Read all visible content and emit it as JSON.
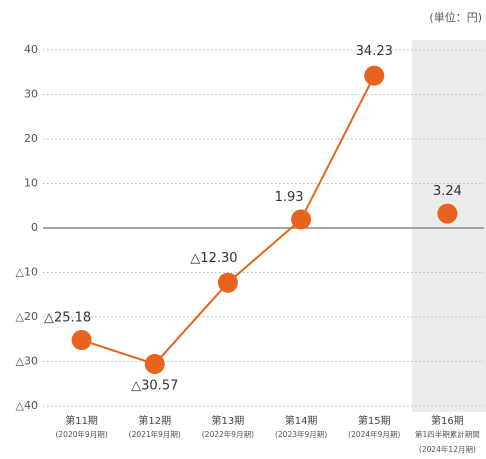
{
  "chart_data": {
    "type": "line",
    "unit_label": "(単位：円)",
    "categories": [
      [
        "第11期",
        "(2020年9月期)"
      ],
      [
        "第12期",
        "(2021年9月期)"
      ],
      [
        "第13期",
        "(2022年9月期)"
      ],
      [
        "第14期",
        "(2023年9月期)"
      ],
      [
        "第15期",
        "(2024年9月期)"
      ],
      [
        "第16期",
        "第1四半期累計期間",
        "(2024年12月期)"
      ]
    ],
    "series": [
      {
        "color": "#e8641e",
        "values": [
          -25.18,
          -30.57,
          -12.3,
          1.93,
          34.23,
          null
        ],
        "value_labels": [
          "△25.18",
          "△30.57",
          "△12.30",
          "1.93",
          "34.23",
          null
        ]
      },
      {
        "color": "#e8641e",
        "values": [
          null,
          null,
          null,
          null,
          null,
          3.24
        ],
        "value_labels": [
          null,
          null,
          null,
          null,
          null,
          "3.24"
        ]
      }
    ],
    "ylim": [
      -40,
      40
    ],
    "yticks": [
      40,
      30,
      20,
      10,
      0,
      {
        "value": -10,
        "label": "△10"
      },
      {
        "value": -20,
        "label": "△20"
      },
      {
        "value": -30,
        "label": "△30"
      },
      {
        "value": -40,
        "label": "△40"
      }
    ],
    "grid": true
  }
}
